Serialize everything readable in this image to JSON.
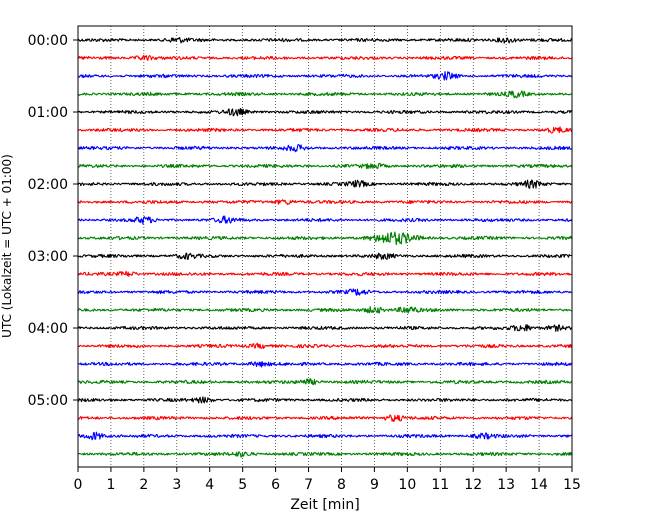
{
  "chart_data": {
    "type": "line",
    "subtype": "helicorder",
    "xlabel": "Zeit  [min]",
    "ylabel": "UTC (Lokalzeit = UTC + 01:00)",
    "xlim": [
      0,
      15
    ],
    "x_ticks": [
      "0",
      "1",
      "2",
      "3",
      "4",
      "5",
      "6",
      "7",
      "8",
      "9",
      "10",
      "11",
      "12",
      "13",
      "14",
      "15"
    ],
    "y_ticks": [
      "00:00",
      "01:00",
      "02:00",
      "03:00",
      "04:00",
      "05:00"
    ],
    "grid": "vertical dotted lines at each minute",
    "trace_interval_minutes": 15,
    "colors": [
      "#000000",
      "#ff0000",
      "#0000ff",
      "#008000"
    ],
    "traces": [
      {
        "start": "00:00",
        "color": "#000000",
        "events": [
          [
            3.0,
            1.2
          ],
          [
            13.0,
            1.6
          ]
        ]
      },
      {
        "start": "00:15",
        "color": "#ff0000",
        "events": [
          [
            2.0,
            1.2
          ]
        ]
      },
      {
        "start": "00:30",
        "color": "#0000ff",
        "events": [
          [
            11.2,
            2.0
          ]
        ]
      },
      {
        "start": "00:45",
        "color": "#008000",
        "events": [
          [
            13.3,
            1.6
          ]
        ]
      },
      {
        "start": "01:00",
        "color": "#000000",
        "events": [
          [
            4.8,
            1.8
          ]
        ]
      },
      {
        "start": "01:15",
        "color": "#ff0000",
        "events": [
          [
            14.5,
            1.3
          ]
        ]
      },
      {
        "start": "01:30",
        "color": "#0000ff",
        "events": [
          [
            6.6,
            1.5
          ]
        ]
      },
      {
        "start": "01:45",
        "color": "#008000",
        "events": [
          [
            9.0,
            1.2
          ]
        ]
      },
      {
        "start": "02:00",
        "color": "#000000",
        "events": [
          [
            8.5,
            1.5
          ],
          [
            13.8,
            1.9
          ]
        ]
      },
      {
        "start": "02:15",
        "color": "#ff0000",
        "events": [
          [
            6.3,
            1.3
          ]
        ]
      },
      {
        "start": "02:30",
        "color": "#0000ff",
        "events": [
          [
            2.0,
            1.6
          ],
          [
            4.5,
            1.5
          ]
        ]
      },
      {
        "start": "02:45",
        "color": "#008000",
        "events": [
          [
            9.6,
            3.2
          ]
        ]
      },
      {
        "start": "03:00",
        "color": "#000000",
        "events": [
          [
            3.3,
            1.3
          ],
          [
            9.3,
            1.3
          ]
        ]
      },
      {
        "start": "03:15",
        "color": "#ff0000",
        "events": [
          [
            1.5,
            1.3
          ]
        ]
      },
      {
        "start": "03:30",
        "color": "#0000ff",
        "events": [
          [
            8.5,
            1.4
          ]
        ]
      },
      {
        "start": "03:45",
        "color": "#008000",
        "events": [
          [
            9.0,
            1.8
          ],
          [
            10.0,
            1.8
          ]
        ]
      },
      {
        "start": "04:00",
        "color": "#000000",
        "events": [
          [
            13.5,
            1.8
          ],
          [
            14.5,
            1.5
          ]
        ]
      },
      {
        "start": "04:15",
        "color": "#ff0000",
        "events": [
          [
            5.5,
            1.2
          ]
        ]
      },
      {
        "start": "04:30",
        "color": "#0000ff",
        "events": [
          [
            5.5,
            1.3
          ]
        ]
      },
      {
        "start": "04:45",
        "color": "#008000",
        "events": [
          [
            7.0,
            1.5
          ]
        ]
      },
      {
        "start": "05:00",
        "color": "#000000",
        "events": [
          [
            3.8,
            1.4
          ]
        ]
      },
      {
        "start": "05:15",
        "color": "#ff0000",
        "events": [
          [
            9.6,
            1.8
          ]
        ]
      },
      {
        "start": "05:30",
        "color": "#0000ff",
        "events": [
          [
            0.5,
            2.2
          ],
          [
            12.3,
            1.3
          ]
        ]
      },
      {
        "start": "05:45",
        "color": "#008000",
        "events": [
          [
            5.0,
            1.2
          ]
        ]
      }
    ]
  }
}
